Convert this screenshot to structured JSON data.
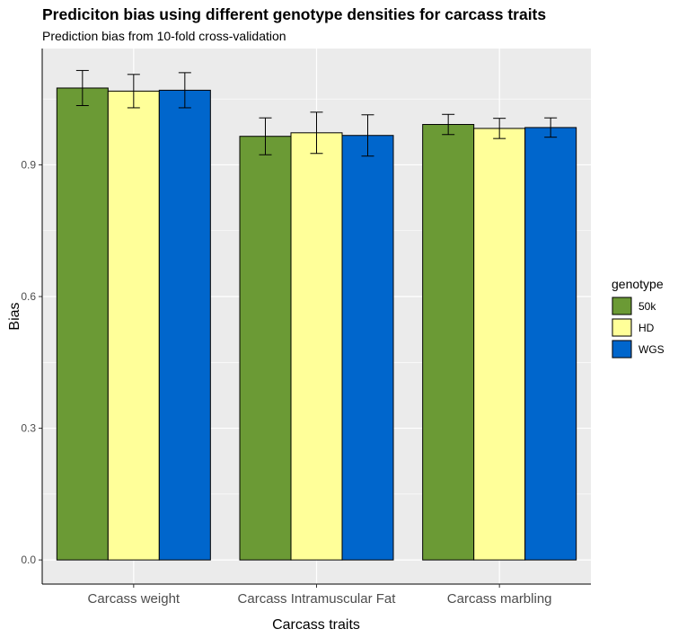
{
  "chart_data": {
    "type": "bar",
    "title": "Prediciton bias  using different genotype densities for carcass traits",
    "subtitle": "Prediction bias from 10-fold cross-validation",
    "xlabel": "Carcass traits",
    "ylabel": "Bias",
    "categories": [
      "Carcass weight",
      "Carcass Intramuscular Fat",
      "Carcass marbling"
    ],
    "series": [
      {
        "name": "50k",
        "color": "#6b9a35",
        "values": [
          1.075,
          0.965,
          0.992
        ],
        "error": [
          0.04,
          0.042,
          0.023
        ]
      },
      {
        "name": "HD",
        "color": "#ffff99",
        "values": [
          1.068,
          0.973,
          0.983
        ],
        "error": [
          0.038,
          0.047,
          0.023
        ]
      },
      {
        "name": "WGS",
        "color": "#0066cc",
        "values": [
          1.07,
          0.967,
          0.985
        ],
        "error": [
          0.04,
          0.047,
          0.022
        ]
      }
    ],
    "yticks": [
      "0.0",
      "0.3",
      "0.6",
      "0.9"
    ],
    "ylim": [
      -0.055,
      1.165
    ],
    "grid": true,
    "legend": {
      "title": "genotype",
      "position": "right"
    }
  }
}
